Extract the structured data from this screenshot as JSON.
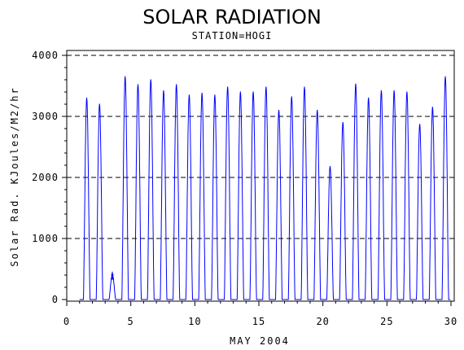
{
  "chart_data": {
    "type": "line",
    "title": "SOLAR RADIATION",
    "subtitle": "STATION=HOGI",
    "xlabel": "MAY 2004",
    "ylabel": "Solar Rad. KJoules/M2/hr",
    "xlim": [
      0,
      30
    ],
    "ylim": [
      0,
      4000
    ],
    "x_ticks": [
      0,
      5,
      10,
      15,
      20,
      25,
      30
    ],
    "y_ticks": [
      0,
      1000,
      2000,
      3000,
      4000
    ],
    "grid": "horizontal dashed at y ticks",
    "series_color": "#0000ff",
    "daily_peaks": {
      "day": [
        1,
        2,
        3,
        4,
        5,
        6,
        7,
        8,
        9,
        10,
        11,
        12,
        13,
        14,
        15,
        16,
        17,
        18,
        19,
        20,
        21,
        22,
        23,
        24,
        25,
        26,
        27,
        28,
        29
      ],
      "peak": [
        3300,
        3200,
        450,
        3650,
        3520,
        3600,
        3420,
        3520,
        3350,
        3380,
        3350,
        3480,
        3400,
        3400,
        3480,
        3100,
        3320,
        3480,
        3100,
        2180,
        2900,
        3530,
        3300,
        3420,
        3420,
        3400,
        2870,
        3150,
        3650
      ]
    }
  }
}
